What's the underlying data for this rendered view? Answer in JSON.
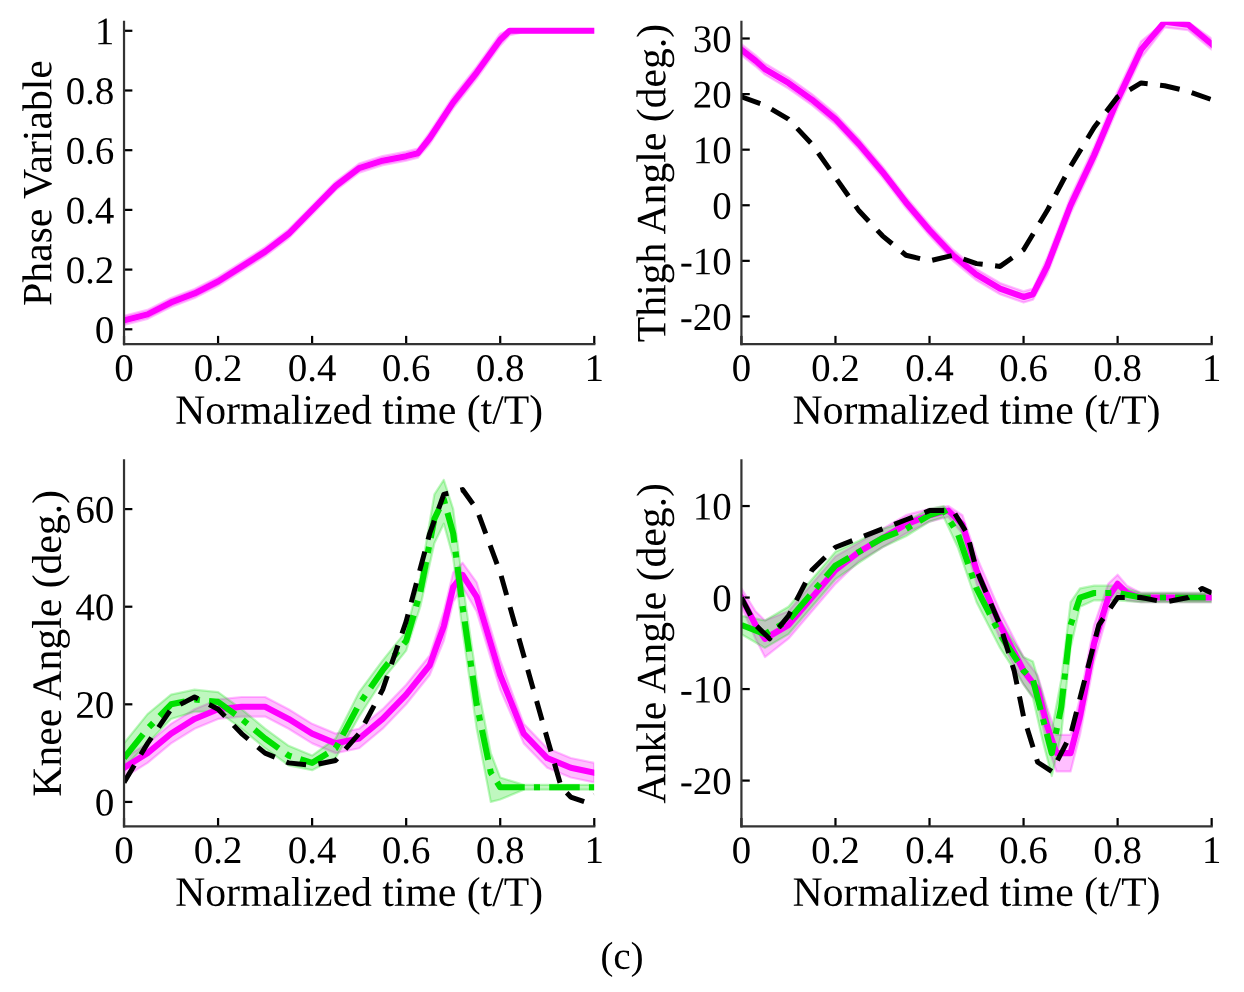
{
  "chart_data": [
    {
      "type": "line",
      "xlabel": "Normalized time (t/T)",
      "ylabel": "Phase Variable",
      "xlim": [
        0,
        1
      ],
      "ylim": [
        -0.05,
        1.03
      ],
      "xticks": [
        0,
        0.2,
        0.4,
        0.6,
        0.8,
        1
      ],
      "yticks": [
        0,
        0.2,
        0.4,
        0.6,
        0.8,
        1
      ],
      "grid": false,
      "legend": false,
      "series": [
        {
          "color": "#ff00ff",
          "line_style": "solid",
          "x": [
            0,
            0.05,
            0.1,
            0.15,
            0.2,
            0.25,
            0.3,
            0.35,
            0.4,
            0.45,
            0.5,
            0.55,
            0.6,
            0.625,
            0.65,
            0.7,
            0.75,
            0.8,
            0.82,
            0.85,
            0.9,
            0.95,
            1
          ],
          "values": [
            0.03,
            0.05,
            0.09,
            0.12,
            0.16,
            0.21,
            0.26,
            0.32,
            0.4,
            0.48,
            0.54,
            0.565,
            0.58,
            0.59,
            0.64,
            0.76,
            0.86,
            0.97,
            1.0,
            1.0,
            1.0,
            1.0,
            1.0
          ],
          "lower": [
            0.015,
            0.035,
            0.075,
            0.105,
            0.145,
            0.195,
            0.245,
            0.305,
            0.385,
            0.465,
            0.525,
            0.55,
            0.565,
            0.575,
            0.62,
            0.74,
            0.84,
            0.95,
            0.985,
            0.995,
            0.995,
            0.995,
            0.995
          ],
          "upper": [
            0.045,
            0.065,
            0.105,
            0.135,
            0.175,
            0.225,
            0.275,
            0.335,
            0.415,
            0.495,
            0.555,
            0.58,
            0.595,
            0.605,
            0.66,
            0.78,
            0.88,
            0.99,
            1.005,
            1.005,
            1.005,
            1.005,
            1.005
          ]
        }
      ]
    },
    {
      "type": "line",
      "xlabel": "Normalized time (t/T)",
      "ylabel": "Thigh Angle (deg.)",
      "xlim": [
        0,
        1
      ],
      "ylim": [
        -25,
        33
      ],
      "xticks": [
        0,
        0.2,
        0.4,
        0.6,
        0.8,
        1
      ],
      "yticks": [
        -20,
        -10,
        0,
        10,
        20,
        30
      ],
      "grid": false,
      "legend": false,
      "series": [
        {
          "color": "#ff00ff",
          "line_style": "solid",
          "x": [
            0,
            0.03,
            0.05,
            0.1,
            0.15,
            0.2,
            0.25,
            0.3,
            0.35,
            0.4,
            0.45,
            0.5,
            0.55,
            0.6,
            0.62,
            0.65,
            0.7,
            0.75,
            0.8,
            0.85,
            0.9,
            0.95,
            1
          ],
          "values": [
            28,
            26,
            24.5,
            22,
            19,
            15.5,
            11,
            6,
            0.5,
            -4.5,
            -9,
            -12.5,
            -15,
            -16.5,
            -16,
            -11,
            0,
            9,
            19,
            28,
            33,
            32.5,
            29
          ],
          "lower": [
            27,
            25,
            23.5,
            21,
            18,
            14.5,
            10,
            5,
            -0.5,
            -5.5,
            -10,
            -13.5,
            -16,
            -17.5,
            -17,
            -12.5,
            -1.5,
            7.5,
            17.5,
            26.5,
            32,
            31.5,
            28
          ],
          "upper": [
            29,
            27,
            25.5,
            23,
            20,
            16.5,
            12,
            7,
            1.5,
            -3.5,
            -8,
            -11.5,
            -14,
            -15.5,
            -15,
            -9.5,
            1.5,
            10.5,
            20.5,
            29.5,
            33,
            33,
            30
          ]
        },
        {
          "color": "#000000",
          "line_style": "dashed",
          "x": [
            0,
            0.05,
            0.1,
            0.15,
            0.2,
            0.25,
            0.3,
            0.35,
            0.4,
            0.45,
            0.5,
            0.55,
            0.6,
            0.65,
            0.7,
            0.75,
            0.8,
            0.85,
            0.9,
            0.95,
            1
          ],
          "values": [
            19.5,
            18,
            15.5,
            11,
            5,
            -1,
            -5.5,
            -9,
            -10,
            -9,
            -10.5,
            -11,
            -8,
            -1,
            7,
            14,
            19.5,
            22,
            21.5,
            20.5,
            19
          ]
        }
      ]
    },
    {
      "type": "line",
      "xlabel": "Normalized time (t/T)",
      "ylabel": "Knee Angle (deg.)",
      "xlim": [
        0,
        1
      ],
      "ylim": [
        -5,
        70
      ],
      "xticks": [
        0,
        0.2,
        0.4,
        0.6,
        0.8,
        1
      ],
      "yticks": [
        0,
        20,
        40,
        60
      ],
      "grid": false,
      "legend": false,
      "series": [
        {
          "color": "#ff00ff",
          "line_style": "solid",
          "x": [
            0,
            0.05,
            0.1,
            0.15,
            0.2,
            0.25,
            0.3,
            0.35,
            0.4,
            0.45,
            0.5,
            0.55,
            0.6,
            0.65,
            0.68,
            0.7,
            0.72,
            0.75,
            0.8,
            0.85,
            0.9,
            0.95,
            1
          ],
          "values": [
            7,
            10,
            14,
            17,
            19,
            19.5,
            19.5,
            17,
            14,
            12,
            13,
            17,
            22,
            28,
            36,
            44,
            46.5,
            42,
            26,
            14,
            9,
            7,
            6
          ],
          "lower": [
            5,
            8,
            12,
            15,
            17,
            17.5,
            17.5,
            15,
            12,
            10,
            11,
            15,
            20,
            26,
            33,
            41,
            44,
            39,
            23,
            12,
            7,
            5,
            4
          ],
          "upper": [
            9,
            12,
            16,
            19,
            21,
            21.5,
            21.5,
            19,
            16,
            14,
            15,
            19,
            24,
            30,
            39,
            47,
            49,
            45,
            29,
            16,
            11,
            9,
            8
          ]
        },
        {
          "color": "#00e000",
          "line_style": "dashdot",
          "x": [
            0,
            0.05,
            0.1,
            0.15,
            0.2,
            0.25,
            0.3,
            0.35,
            0.4,
            0.45,
            0.5,
            0.55,
            0.6,
            0.63,
            0.66,
            0.68,
            0.7,
            0.72,
            0.75,
            0.78,
            0.8,
            0.85,
            0.9,
            0.95,
            1
          ],
          "values": [
            9,
            15,
            20,
            21,
            20.5,
            17,
            13,
            9.5,
            8,
            11,
            20,
            27,
            33,
            43,
            58,
            62,
            55,
            40,
            20,
            6,
            3,
            3,
            3,
            3,
            3
          ],
          "lower": [
            7,
            12,
            17,
            18.5,
            18.5,
            15,
            11,
            7.5,
            6.5,
            9,
            17.5,
            25,
            31,
            40,
            53,
            57,
            50,
            35,
            15,
            0,
            0.5,
            2.5,
            2.5,
            2.5,
            2.5
          ],
          "upper": [
            12,
            18,
            22,
            23,
            22.5,
            19,
            15,
            11.5,
            9.5,
            13,
            22.5,
            29,
            35,
            46,
            63,
            66,
            60,
            45,
            25,
            10,
            5,
            3.5,
            3.5,
            3.5,
            3.5
          ]
        },
        {
          "color": "#000000",
          "line_style": "dashed",
          "x": [
            0,
            0.05,
            0.1,
            0.15,
            0.2,
            0.25,
            0.3,
            0.35,
            0.4,
            0.45,
            0.5,
            0.55,
            0.6,
            0.65,
            0.68,
            0.72,
            0.75,
            0.8,
            0.85,
            0.9,
            0.93,
            0.95,
            0.98,
            1
          ],
          "values": [
            4,
            12,
            19,
            21.5,
            19,
            14,
            10,
            8,
            7.5,
            8.5,
            14,
            23,
            37,
            55,
            63,
            64,
            60,
            47,
            30,
            13,
            3,
            1,
            0,
            1.5
          ]
        }
      ]
    },
    {
      "type": "line",
      "xlabel": "Normalized time (t/T)",
      "ylabel": "Ankle Angle (deg.)",
      "xlim": [
        0,
        1
      ],
      "ylim": [
        -25,
        15
      ],
      "xticks": [
        0,
        0.2,
        0.4,
        0.6,
        0.8,
        1
      ],
      "yticks": [
        -20,
        -10,
        0,
        10
      ],
      "grid": false,
      "legend": false,
      "annotations": [
        "(c)"
      ],
      "series": [
        {
          "color": "#ff00ff",
          "line_style": "solid",
          "x": [
            0,
            0.03,
            0.05,
            0.1,
            0.15,
            0.2,
            0.25,
            0.3,
            0.35,
            0.4,
            0.44,
            0.47,
            0.5,
            0.55,
            0.6,
            0.63,
            0.65,
            0.67,
            0.7,
            0.72,
            0.75,
            0.78,
            0.8,
            0.82,
            0.85,
            0.9,
            1
          ],
          "values": [
            0,
            -3,
            -4.5,
            -3,
            0,
            3,
            5,
            6.5,
            8,
            9,
            9.5,
            8,
            3,
            -3,
            -8,
            -10,
            -14,
            -17,
            -17,
            -13,
            -5,
            0,
            1.5,
            0.5,
            0,
            0,
            0
          ],
          "lower": [
            -1,
            -4.5,
            -6.5,
            -4.5,
            -1.5,
            1.5,
            4,
            5.5,
            7,
            8.3,
            8.8,
            7,
            1.5,
            -4.5,
            -9.5,
            -11.5,
            -16,
            -19,
            -19,
            -15,
            -7,
            -1.5,
            0.5,
            -0.3,
            -0.5,
            -0.5,
            -0.5
          ],
          "upper": [
            1,
            -1.5,
            -2.5,
            -1.5,
            1.5,
            4.5,
            6,
            7.5,
            9,
            9.7,
            10,
            9,
            4.5,
            -1.5,
            -6.5,
            -8.5,
            -12,
            -15,
            -15,
            -11,
            -3,
            1.5,
            2.5,
            1.3,
            0.5,
            0.5,
            0.5
          ]
        },
        {
          "color": "#00e000",
          "line_style": "dashdot",
          "x": [
            0,
            0.05,
            0.1,
            0.15,
            0.2,
            0.25,
            0.3,
            0.35,
            0.4,
            0.43,
            0.46,
            0.5,
            0.55,
            0.6,
            0.62,
            0.64,
            0.66,
            0.68,
            0.7,
            0.72,
            0.75,
            0.8,
            0.85,
            1
          ],
          "values": [
            -3,
            -4,
            -2.5,
            0.5,
            3.5,
            5,
            6.5,
            7.5,
            9,
            9.5,
            7,
            1,
            -4,
            -8,
            -9,
            -13,
            -17,
            -12,
            -3,
            0,
            0.5,
            0.5,
            0,
            0
          ],
          "lower": [
            -4,
            -5.5,
            -4,
            -1,
            2,
            3.8,
            5.5,
            6.7,
            8.3,
            8.8,
            5.5,
            -0.5,
            -5.5,
            -9.5,
            -11,
            -15.5,
            -19.5,
            -15,
            -5.5,
            -1,
            -0.3,
            -0.3,
            -0.5,
            -0.5
          ],
          "upper": [
            -2,
            -2.5,
            -1,
            2,
            5,
            6.2,
            7.5,
            8.3,
            9.7,
            10,
            8.5,
            2.5,
            -2.5,
            -6.5,
            -7,
            -10.5,
            -14.5,
            -9,
            -0.5,
            1,
            1.3,
            1.3,
            0.5,
            0.5
          ]
        },
        {
          "color": "#000000",
          "line_style": "dashed",
          "x": [
            0,
            0.03,
            0.06,
            0.1,
            0.15,
            0.2,
            0.25,
            0.3,
            0.35,
            0.4,
            0.45,
            0.48,
            0.5,
            0.55,
            0.58,
            0.6,
            0.63,
            0.66,
            0.7,
            0.73,
            0.76,
            0.8,
            0.85,
            0.9,
            0.95,
            0.98,
            1
          ],
          "values": [
            0,
            -3,
            -4.5,
            -2,
            3,
            5.5,
            6.5,
            7.5,
            8.5,
            9.5,
            9.5,
            7,
            3,
            -3,
            -8,
            -13,
            -18,
            -19,
            -15,
            -9,
            -3,
            0,
            0,
            -0.5,
            0,
            1,
            0.5
          ]
        }
      ]
    }
  ]
}
